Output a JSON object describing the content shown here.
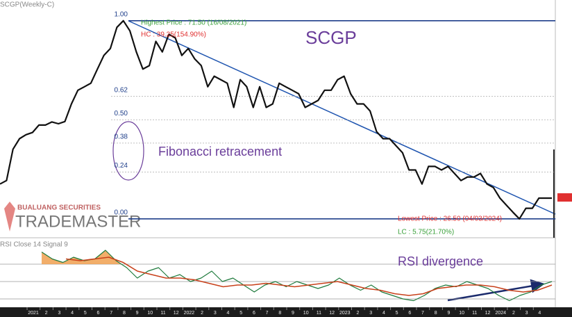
{
  "chart_data": [
    {
      "type": "line",
      "title": "SCGP(Weekly-C)",
      "annotations": [
        "Highest Price : 71.50 (16/08/2021)",
        "HC : 39.25(154.90%)",
        "Lowest Price : 26.50 (04/03/2024)",
        "LC : 5.75(21.70%)",
        "SCGP",
        "Fibonacci retracement"
      ],
      "ylim": [
        22.2,
        76.2
      ],
      "yticks": [
        {
          "value": 71.5,
          "label": "1.00"
        },
        {
          "value": 54.31,
          "label": "0.62"
        },
        {
          "value": 49,
          "label": "0.50"
        },
        {
          "value": 43.69,
          "label": "0.38"
        },
        {
          "value": 37.12,
          "label": "0.24"
        },
        {
          "value": 26.5,
          "label": "0.00"
        }
      ],
      "series": [
        {
          "color": "#111111",
          "values": [
            34.4,
            35.2,
            42.3,
            44.7,
            45.6,
            46.1,
            47.8,
            47.8,
            48.5,
            48.1,
            48.6,
            52.6,
            55.7,
            56.5,
            57.3,
            60.5,
            63.6,
            65.2,
            70.0,
            71.5,
            69.2,
            64.4,
            60.5,
            61.3,
            66.8,
            64.4,
            68.4,
            67.6,
            63.6,
            65.2,
            62.8,
            61.3,
            56.5,
            58.9,
            58.1,
            57.3,
            51.8,
            58.1,
            56.5,
            51.8,
            56.5,
            51.8,
            52.6,
            57.3,
            56.5,
            55.7,
            54.9,
            51.8,
            52.6,
            53.4,
            55.7,
            55.7,
            58.1,
            58.9,
            54.9,
            52.6,
            52.6,
            51.0,
            46.3,
            44.7,
            44.7,
            43.1,
            41.5,
            37.6,
            37.6,
            34.4,
            38.4,
            38.4,
            37.6,
            38.4,
            36.8,
            35.2,
            36.0,
            36.0,
            36.8,
            34.4,
            33.6,
            31.2,
            29.6,
            28.0,
            26.5,
            28.9,
            28.9,
            31.2,
            31.2,
            31.2
          ]
        }
      ]
    },
    {
      "type": "line",
      "title": "RSI Close 14 Signal 9",
      "annotations": [
        "RSI divergence"
      ],
      "ylim": [
        22,
        98
      ],
      "levels": [
        30,
        50,
        70
      ],
      "series": [
        {
          "color": "#1e7a3c",
          "values": [
            84,
            76,
            72,
            78,
            74,
            76,
            86,
            74,
            66,
            54,
            62,
            66,
            54,
            58,
            50,
            54,
            62,
            50,
            54,
            46,
            38,
            46,
            50,
            44,
            50,
            46,
            42,
            46,
            54,
            46,
            40,
            46,
            38,
            34,
            30,
            28,
            34,
            42,
            46,
            44,
            50,
            46,
            42,
            34,
            28,
            34,
            38,
            46,
            50
          ]
        },
        {
          "color": "#c8401a",
          "values": [
            76,
            74,
            76,
            78,
            72,
            62,
            58,
            54,
            54,
            52,
            48,
            44,
            46,
            46,
            48,
            46,
            44,
            46,
            48,
            50,
            46,
            42,
            40,
            36,
            34,
            36,
            42,
            44,
            46,
            46,
            44,
            40,
            38,
            40,
            46
          ]
        }
      ],
      "x_labels": [
        "2021",
        "2",
        "3",
        "4",
        "5",
        "6",
        "7",
        "8",
        "9",
        "10",
        "11",
        "12",
        "2022",
        "2",
        "3",
        "4",
        "5",
        "6",
        "7",
        "8",
        "9",
        "10",
        "11",
        "12",
        "2023",
        "2",
        "3",
        "4",
        "5",
        "6",
        "7",
        "8",
        "9",
        "10",
        "11",
        "12",
        "2024",
        "2",
        "3",
        "4"
      ]
    }
  ],
  "watermark": {
    "company": "BUALUANG SECURITIES",
    "product": "TRADEMASTER"
  }
}
